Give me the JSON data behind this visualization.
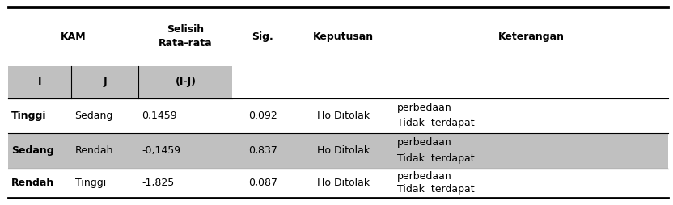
{
  "figsize": [
    8.32,
    2.54
  ],
  "dpi": 100,
  "shade_color": "#C0C0C0",
  "white_color": "#FFFFFF",
  "header_row1": [
    "KAM",
    "Selisih\nRata-rata",
    "Sig.",
    "Keputusan",
    "Keterangan"
  ],
  "header_row2": [
    "I",
    "J",
    "(I-J)"
  ],
  "rows": [
    [
      "Tinggi",
      "Sedang",
      "0,1459",
      "0.092",
      "Ho Ditolak",
      "Tidak  terdapat",
      "perbedaan"
    ],
    [
      "Sedang",
      "Rendah",
      "-0,1459",
      "0,837",
      "Ho Ditolak",
      "Tidak  terdapat",
      "perbedaan"
    ],
    [
      "Rendah",
      "Tinggi",
      "-1,825",
      "0,087",
      "Ho Ditolak",
      "Tidak  terdapat",
      "perbedaan"
    ]
  ],
  "shaded_rows": [
    1
  ],
  "fs": 9.0
}
